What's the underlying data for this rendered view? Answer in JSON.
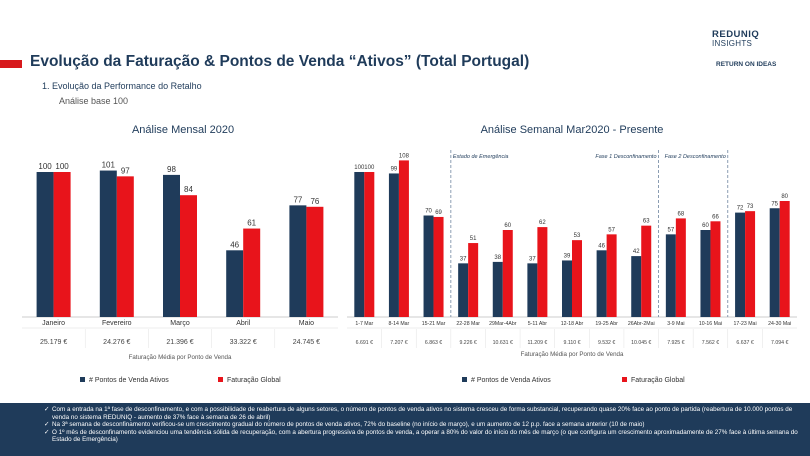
{
  "header": {
    "title": "Evolução da Faturação & Pontos de Venda “Ativos” (Total Portugal)",
    "subtitle": "1.   Evolução da Performance do Retalho",
    "base_note": "Análise base 100",
    "brand_main": "REDUNIQ",
    "brand_sub": "INSIGHTS",
    "brand_partner": "RETURN ON IDEAS"
  },
  "colors": {
    "navy": "#1f3b5a",
    "red": "#e8141b",
    "brand_red": "#d7191c"
  },
  "chart_data": [
    {
      "type": "bar",
      "title": "Análise Mensal 2020",
      "categories": [
        "Janeiro",
        "Fevereiro",
        "Março",
        "Abril",
        "Maio"
      ],
      "series": [
        {
          "name": "# Pontos de Venda Ativos",
          "values": [
            100,
            101,
            98,
            46,
            77
          ]
        },
        {
          "name": "Faturação Global",
          "values": [
            100,
            97,
            84,
            61,
            76
          ]
        }
      ],
      "avg_values": [
        "25.179 €",
        "24.276 €",
        "21.396 €",
        "33.322 €",
        "24.745 €"
      ],
      "avg_label": "Faturação Média por Ponto de Venda",
      "ylim": [
        0,
        110
      ]
    },
    {
      "type": "bar",
      "title": "Análise Semanal Mar2020 - Presente",
      "categories": [
        "1-7 Mar",
        "8-14 Mar",
        "15-21 Mar",
        "22-28 Mar",
        "29Mar-4Abr",
        "5-11 Abr",
        "12-18 Abr",
        "19-25 Abr",
        "26Abr-2Mai",
        "3-9 Mai",
        "10-16 Mai",
        "17-23 Mai",
        "24-30 Mai"
      ],
      "series": [
        {
          "name": "# Pontos de Venda Ativos",
          "values": [
            100,
            99,
            70,
            37,
            38,
            37,
            39,
            46,
            42,
            57,
            60,
            72,
            75
          ]
        },
        {
          "name": "Faturação Global",
          "values": [
            100,
            108,
            69,
            51,
            60,
            62,
            53,
            57,
            63,
            68,
            66,
            73,
            80
          ]
        }
      ],
      "avg_values": [
        "6.691 €",
        "7.207 €",
        "6.863 €",
        "9.226 €",
        "10.631 €",
        "11.209 €",
        "9.110 €",
        "9.532 €",
        "10.045 €",
        "7.925 €",
        "7.562 €",
        "6.637 €",
        "7.094 €"
      ],
      "avg_label": "Faturação Média por Ponto de Venda",
      "annotations": [
        {
          "label": "Estado de Emergência",
          "after_category": "15-21 Mar"
        },
        {
          "label": "Fase 1 Desconfinamento",
          "after_category": "26Abr-2Mai"
        },
        {
          "label": "Fase 2 Desconfinamento",
          "after_category": "10-16 Mai"
        }
      ],
      "ylim": [
        0,
        110
      ]
    }
  ],
  "footer_notes": [
    "Com a entrada na 1ª fase de desconfinamento, e com a possibilidade de reabertura de alguns setores, o número de pontos de venda ativos no sistema cresceu de forma substancial, recuperando quase 20% face ao ponto de partida (reabertura de 10.000 pontos de venda no sistema REDUNIQ - aumento de 37% face à semana de 26 de abril)",
    "Na 3ª semana de desconfinamento verificou-se um crescimento gradual do número de pontos de venda ativos, 72% do baseline (no início de março), e um aumento de 12 p.p. face a semana anterior (10 de maio)",
    "O 1º mês de desconfinamento evidenciou uma tendência sólida de recuperação, com a abertura progressiva de pontos de venda, a operar a 80% do valor do início do mês de março (o que configura um crescimento aproximadamente de 27% face à última semana do Estado de Emergência)"
  ],
  "footer_tick": "✓"
}
